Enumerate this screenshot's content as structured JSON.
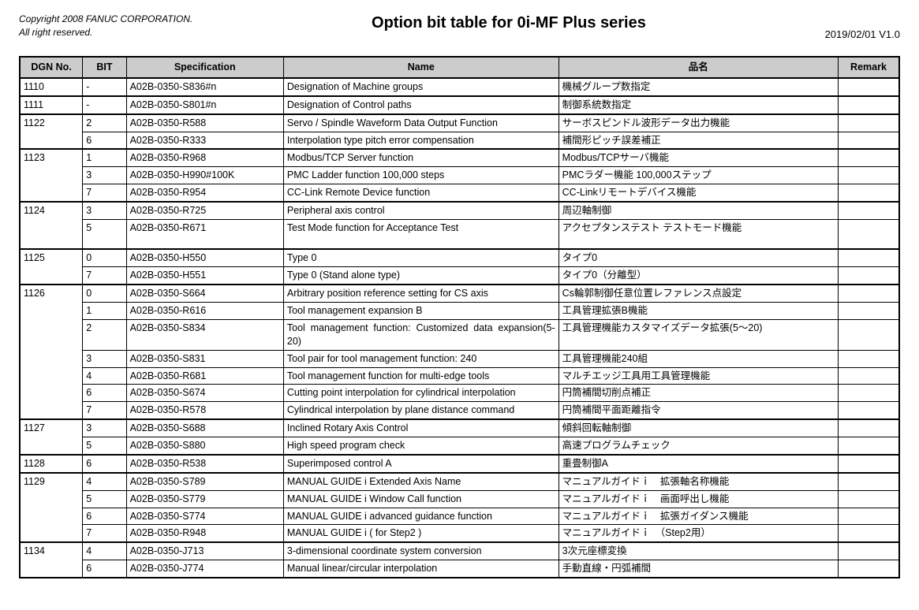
{
  "header": {
    "copyright_line1": "Copyright 2008 FANUC CORPORATION.",
    "copyright_line2": "All right reserved.",
    "title": "Option bit table for 0i-MF Plus series",
    "version": "2019/02/01 V1.0"
  },
  "columns": {
    "dgn": "DGN No.",
    "bit": "BIT",
    "spec": "Specification",
    "name": "Name",
    "jname": "品名",
    "remark": "Remark"
  },
  "groups": [
    {
      "dgn": "1110",
      "span": 1,
      "rows": [
        {
          "bit": "-",
          "spec": "A02B-0350-S836#n",
          "name": "Designation of Machine groups",
          "jname": "機械グループ数指定",
          "remark": ""
        }
      ]
    },
    {
      "dgn": "1111",
      "span": 1,
      "rows": [
        {
          "bit": "-",
          "spec": "A02B-0350-S801#n",
          "name": "Designation of Control paths",
          "jname": "制御系統数指定",
          "remark": ""
        }
      ]
    },
    {
      "dgn": "1122",
      "span": 2,
      "rows": [
        {
          "bit": "2",
          "spec": "A02B-0350-R588",
          "name": "Servo / Spindle Waveform Data Output Function",
          "jname": "サーボスピンドル波形データ出力機能",
          "remark": ""
        },
        {
          "bit": "6",
          "spec": "A02B-0350-R333",
          "name": "Interpolation type pitch error compensation",
          "jname": "補間形ピッチ誤差補正",
          "remark": ""
        }
      ]
    },
    {
      "dgn": "1123",
      "span": 3,
      "rows": [
        {
          "bit": "1",
          "spec": "A02B-0350-R968",
          "name": "Modbus/TCP Server function",
          "jname": "Modbus/TCPサーバ機能",
          "remark": ""
        },
        {
          "bit": "3",
          "spec": "A02B-0350-H990#100K",
          "name": "PMC Ladder function 100,000 steps",
          "jname": "PMCラダー機能 100,000ステップ",
          "remark": ""
        },
        {
          "bit": "7",
          "spec": "A02B-0350-R954",
          "name": "CC-Link Remote Device function",
          "jname": "CC-Linkリモートデバイス機能",
          "remark": ""
        }
      ]
    },
    {
      "dgn": "1124",
      "span": 2,
      "tall": true,
      "rows": [
        {
          "bit": "3",
          "spec": "A02B-0350-R725",
          "name": "Peripheral axis control",
          "jname": "周辺軸制御",
          "remark": ""
        },
        {
          "bit": "5",
          "spec": "A02B-0350-R671",
          "name": "Test Mode function for Acceptance Test",
          "jname": "アクセプタンステスト テストモード機能",
          "remark": "",
          "tall": true
        }
      ]
    },
    {
      "dgn": "1125",
      "span": 2,
      "rows": [
        {
          "bit": "0",
          "spec": "A02B-0350-H550",
          "name": "Type 0",
          "jname": "タイプ0",
          "remark": ""
        },
        {
          "bit": "7",
          "spec": "A02B-0350-H551",
          "name": "Type 0 (Stand alone type)",
          "jname": "タイプ0（分離型）",
          "remark": ""
        }
      ]
    },
    {
      "dgn": "1126",
      "span": 7,
      "rows": [
        {
          "bit": "0",
          "spec": "A02B-0350-S664",
          "name": "Arbitrary position reference setting for CS axis",
          "jname": "Cs輪郭制御任意位置レファレンス点設定",
          "remark": ""
        },
        {
          "bit": "1",
          "spec": "A02B-0350-R616",
          "name": "Tool management expansion B",
          "jname": "工具管理拡張B機能",
          "remark": ""
        },
        {
          "bit": "2",
          "spec": "A02B-0350-S834",
          "name": "Tool management function: Customized data expansion(5-20)",
          "jname": "工具管理機能カスタマイズデータ拡張(5～20)",
          "remark": "",
          "justify": true
        },
        {
          "bit": "3",
          "spec": "A02B-0350-S831",
          "name": "Tool pair for tool management function: 240",
          "jname": "工具管理機能240組",
          "remark": "",
          "justify": true
        },
        {
          "bit": "4",
          "spec": "A02B-0350-R681",
          "name": "Tool management function for multi-edge tools",
          "jname": "マルチエッジ工具用工具管理機能",
          "remark": ""
        },
        {
          "bit": "6",
          "spec": "A02B-0350-S674",
          "name": "Cutting point interpolation for cylindrical interpolation",
          "jname": "円筒補間切削点補正",
          "remark": "",
          "justify": true
        },
        {
          "bit": "7",
          "spec": "A02B-0350-R578",
          "name": "Cylindrical interpolation by plane distance command",
          "jname": "円筒補間平面距離指令",
          "remark": "",
          "justify": true
        }
      ]
    },
    {
      "dgn": "1127",
      "span": 2,
      "rows": [
        {
          "bit": "3",
          "spec": "A02B-0350-S688",
          "name": "Inclined Rotary Axis Control",
          "jname": "傾斜回転軸制御",
          "remark": ""
        },
        {
          "bit": "5",
          "spec": "A02B-0350-S880",
          "name": "High speed program check",
          "jname": "高速プログラムチェック",
          "remark": ""
        }
      ]
    },
    {
      "dgn": "1128",
      "span": 1,
      "rows": [
        {
          "bit": "6",
          "spec": "A02B-0350-R538",
          "name": "Superimposed control A",
          "jname": "重畳制御A",
          "remark": ""
        }
      ]
    },
    {
      "dgn": "1129",
      "span": 4,
      "rows": [
        {
          "bit": "4",
          "spec": "A02B-0350-S789",
          "name": "MANUAL GUIDE i Extended Axis Name",
          "jname": "マニュアルガイドｉ　拡張軸名称機能",
          "remark": "",
          "justify": true
        },
        {
          "bit": "5",
          "spec": "A02B-0350-S779",
          "name": "MANUAL GUIDE i Window Call function",
          "jname": "マニュアルガイドｉ　画面呼出し機能",
          "remark": ""
        },
        {
          "bit": "6",
          "spec": "A02B-0350-S774",
          "name": "MANUAL GUIDE i advanced guidance function",
          "jname": "マニュアルガイドｉ　拡張ガイダンス機能",
          "remark": ""
        },
        {
          "bit": "7",
          "spec": "A02B-0350-R948",
          "name": "MANUAL GUIDE i ( for Step2 )",
          "jname": "マニュアルガイドｉ　（Step2用）",
          "remark": ""
        }
      ]
    },
    {
      "dgn": "1134",
      "span": 2,
      "rows": [
        {
          "bit": "4",
          "spec": "A02B-0350-J713",
          "name": "3-dimensional coordinate system conversion",
          "jname": "3次元座標変換",
          "remark": ""
        },
        {
          "bit": "6",
          "spec": "A02B-0350-J774",
          "name": "Manual linear/circular interpolation",
          "jname": "手動直線・円弧補間",
          "remark": ""
        }
      ]
    }
  ]
}
